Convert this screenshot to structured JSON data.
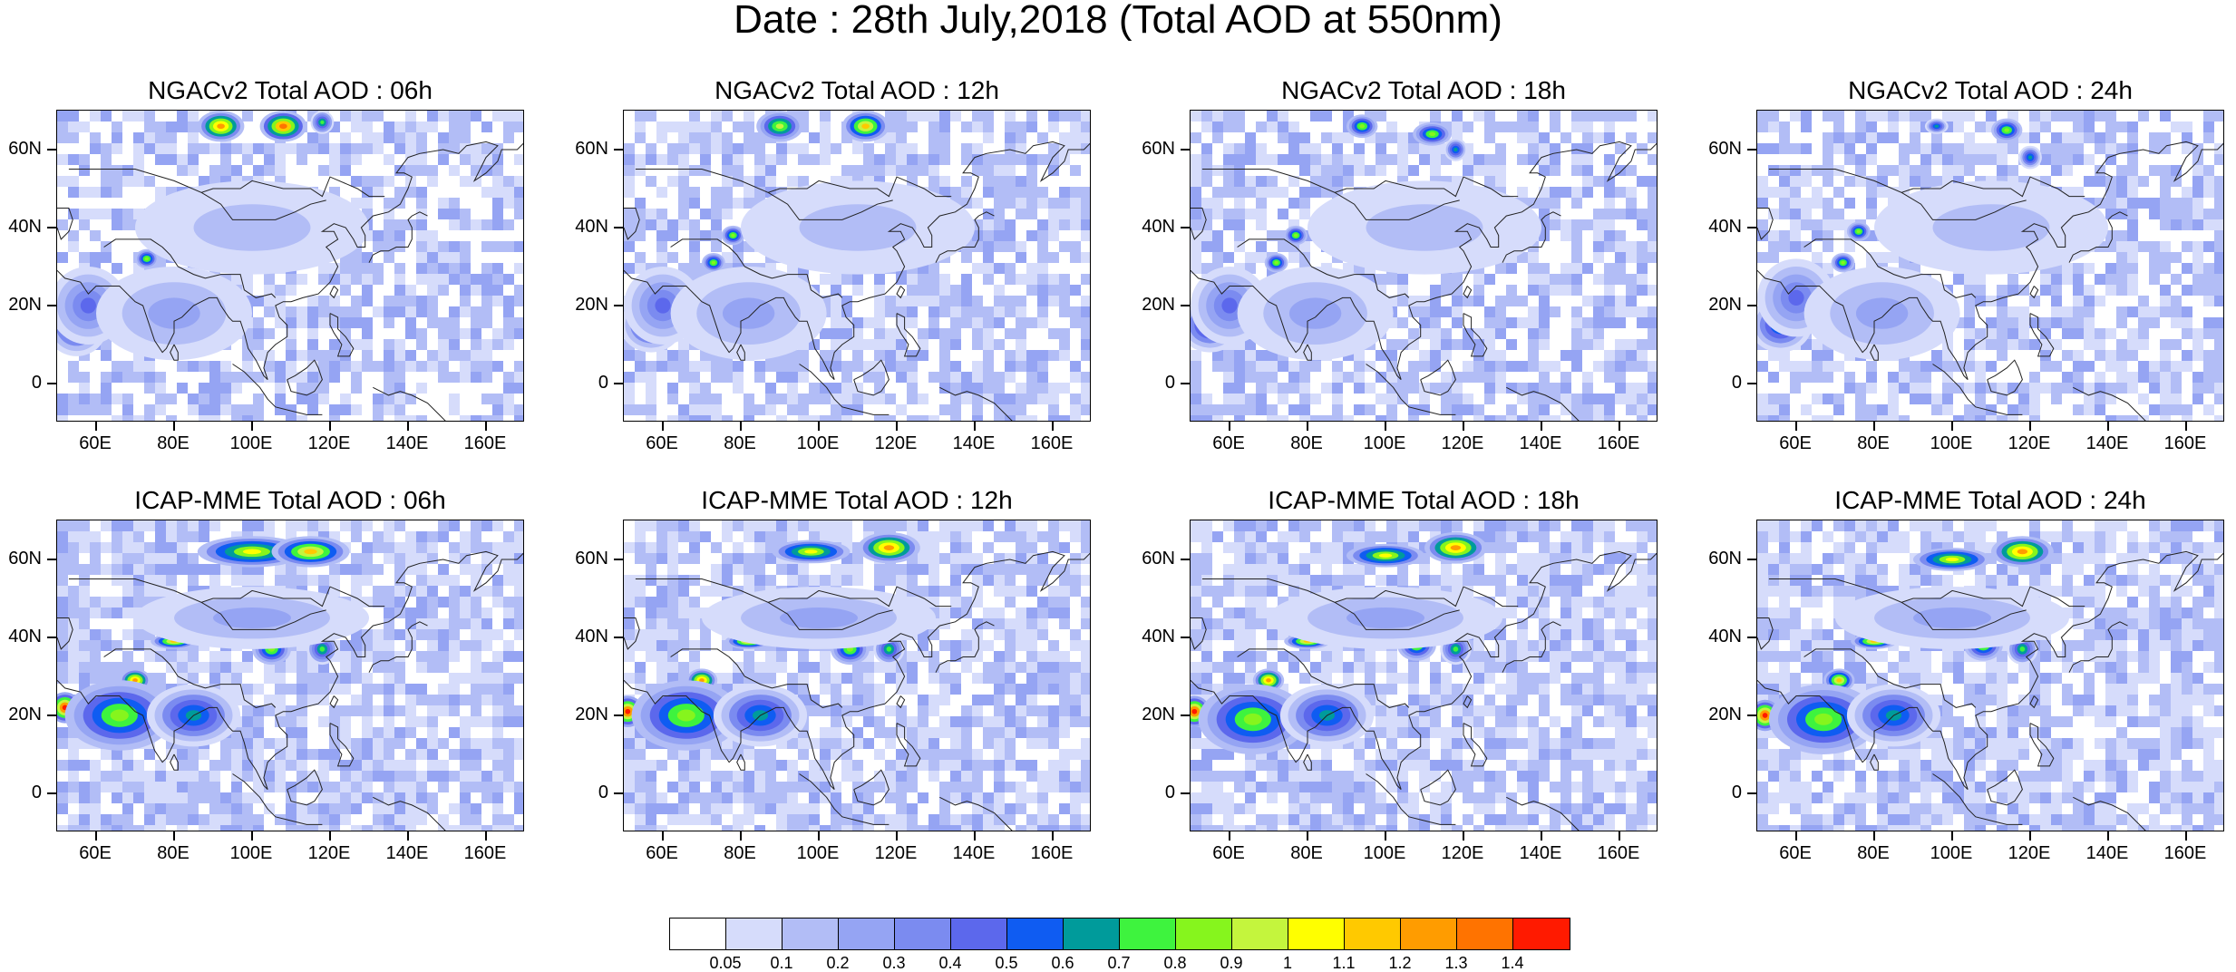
{
  "title": "Date : 28th July,2018 (Total AOD at 550nm)",
  "axes": {
    "x_ticks": [
      "60E",
      "80E",
      "100E",
      "120E",
      "140E",
      "160E"
    ],
    "y_ticks": [
      "60N",
      "40N",
      "20N",
      "0"
    ]
  },
  "panels": [
    {
      "title": "NGACv2 Total AOD : 06h",
      "model": "NGACv2",
      "hour": "06h"
    },
    {
      "title": "NGACv2 Total AOD : 12h",
      "model": "NGACv2",
      "hour": "12h"
    },
    {
      "title": "NGACv2 Total AOD : 18h",
      "model": "NGACv2",
      "hour": "18h"
    },
    {
      "title": "NGACv2 Total AOD : 24h",
      "model": "NGACv2",
      "hour": "24h"
    },
    {
      "title": "ICAP-MME Total AOD : 06h",
      "model": "ICAP-MME",
      "hour": "06h"
    },
    {
      "title": "ICAP-MME Total AOD : 12h",
      "model": "ICAP-MME",
      "hour": "12h"
    },
    {
      "title": "ICAP-MME Total AOD : 18h",
      "model": "ICAP-MME",
      "hour": "18h"
    },
    {
      "title": "ICAP-MME Total AOD : 24h",
      "model": "ICAP-MME",
      "hour": "24h"
    }
  ],
  "colorbar": {
    "labels": [
      "0.05",
      "0.1",
      "0.2",
      "0.3",
      "0.4",
      "0.5",
      "0.6",
      "0.7",
      "0.8",
      "0.9",
      "1",
      "1.1",
      "1.2",
      "1.3",
      "1.4"
    ],
    "colors": [
      "#ffffff",
      "#d6dcfb",
      "#b2bdf6",
      "#95a4f3",
      "#7b8bf0",
      "#5c68ec",
      "#0f5cf2",
      "#009b9b",
      "#3ef33e",
      "#86f51d",
      "#c4f53d",
      "#ffff00",
      "#ffc900",
      "#ff9c00",
      "#ff7300",
      "#ff1a00"
    ]
  }
}
